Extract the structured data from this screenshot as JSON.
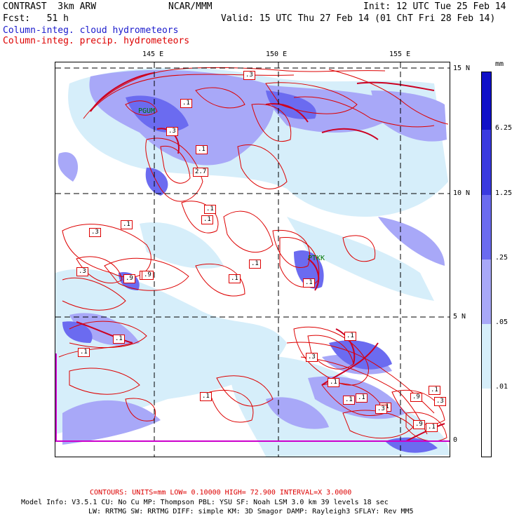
{
  "header": {
    "model": "CONTRAST",
    "resolution": "3km ARW",
    "institution": "NCAR/MMM",
    "init": "Init: 12 UTC Tue 25 Feb 14",
    "forecast_label": "Fcst:",
    "forecast_hours": "51 h",
    "valid": "Valid: 15 UTC Thu 27 Feb 14 (01 ChT Fri 28 Feb 14)",
    "field_cloud": "Column-integ. cloud hydrometeors",
    "field_precip": "Column-integ. precip. hydrometeors"
  },
  "colors": {
    "cloud_text": "#1a1acc",
    "precip_text": "#dd0000",
    "contour": "#dd0000",
    "station": "#007700",
    "boundary": "#cc00cc"
  },
  "map": {
    "lon_labels": [
      "145 E",
      "150 E",
      "155 E"
    ],
    "lat_labels": [
      "15 N",
      "10 N",
      "5 N",
      "0"
    ],
    "stations": [
      "PGUM",
      "PTKK"
    ],
    "contour_labels": [
      ".3",
      ".1",
      ".3",
      ".1",
      "2.7",
      ".1",
      ".1",
      ".3",
      ".1",
      ".3",
      ".1",
      ".1",
      ".9",
      ".1",
      ".9",
      ".1",
      ".1",
      ".1",
      ".1",
      ".1",
      ".3",
      ".1",
      ".1",
      ".1",
      ".1",
      ".3",
      ".9",
      ".1",
      ".3",
      ".9",
      ".1"
    ]
  },
  "colorbar": {
    "units": "mm",
    "tick_labels": [
      "6.25",
      "1.25",
      ".25",
      ".05",
      ".01"
    ],
    "fill_colors": [
      "#1010c8",
      "#3a3ae0",
      "#6b6bf0",
      "#a8a8f8",
      "#d6eefa",
      "#ffffff"
    ]
  },
  "footer": {
    "contours": "CONTOURS:  UNITS=mm  LOW= 0.10000     HIGH= 72.900     INTERVAL=X  3.0000",
    "model_info_line1": "Model Info: V3.5.1     CU: No Cu     MP: Thompson     PBL: YSU       SF: Noah LSM     3.0 km   39 levels    18 sec",
    "model_info_line2": "LW: RRTMG    SW: RRTMG   DIFF: simple KM: 3D Smagor DAMP: Rayleigh3   SFLAY: Rev MM5"
  }
}
